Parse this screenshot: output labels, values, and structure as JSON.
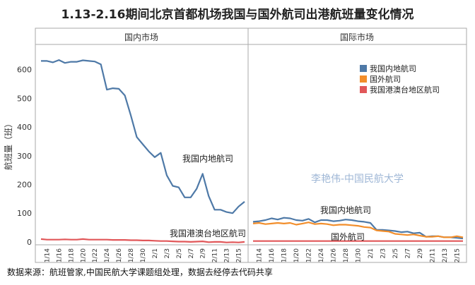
{
  "title": "1.13-2.16期间北京首都机场我国与国外航司出港航班量变化情况",
  "source": "数据来源：航班管家,中国民航大学课题组处理，数据去经停去代码共享",
  "watermark": "李艳伟-中国民航大学",
  "colors": {
    "domestic": "#4e79a7",
    "foreign": "#f28e2b",
    "hmt": "#e15759",
    "watermark": "#9fb7d6"
  },
  "chart_data": [
    {
      "type": "line",
      "panel_title": "国内市场",
      "ylabel": "航班量（班）",
      "ylim": [
        -10,
        680
      ],
      "yticks": [
        0,
        100,
        200,
        300,
        400,
        500,
        600
      ],
      "x_ticklabels": [
        "1/14",
        "1/16",
        "1/18",
        "1/20",
        "1/22",
        "1/24",
        "1/26",
        "1/28",
        "1/30",
        "2/1",
        "2/3",
        "2/5",
        "2/7",
        "2/9",
        "2/11",
        "2/13",
        "2/15"
      ],
      "x": [
        "1/13",
        "1/14",
        "1/15",
        "1/16",
        "1/17",
        "1/18",
        "1/19",
        "1/20",
        "1/21",
        "1/22",
        "1/23",
        "1/24",
        "1/25",
        "1/26",
        "1/27",
        "1/28",
        "1/29",
        "1/30",
        "1/31",
        "2/1",
        "2/2",
        "2/3",
        "2/4",
        "2/5",
        "2/6",
        "2/7",
        "2/8",
        "2/9",
        "2/10",
        "2/11",
        "2/12",
        "2/13",
        "2/14",
        "2/15",
        "2/16"
      ],
      "series": [
        {
          "name": "我国内地航司",
          "color": "#4e79a7",
          "values": [
            630,
            630,
            625,
            633,
            623,
            627,
            627,
            632,
            630,
            628,
            618,
            530,
            535,
            533,
            510,
            440,
            365,
            340,
            315,
            295,
            310,
            232,
            195,
            190,
            155,
            155,
            185,
            237,
            160,
            112,
            112,
            104,
            100,
            123,
            140
          ]
        },
        {
          "name": "我国港澳台地区航司",
          "color": "#e15759",
          "values": [
            10,
            8,
            8,
            8,
            9,
            8,
            8,
            10,
            8,
            8,
            8,
            8,
            7,
            7,
            7,
            6,
            6,
            5,
            5,
            4,
            3,
            3,
            2,
            1,
            1,
            0,
            1,
            2,
            -1,
            0,
            0,
            -2,
            -1,
            -2,
            0
          ]
        }
      ],
      "annotations": [
        "我国内地航司",
        "我国港澳台地区航司"
      ]
    },
    {
      "type": "line",
      "panel_title": "国际市场",
      "ylim": [
        -10,
        680
      ],
      "x_ticklabels": [
        "1/14",
        "1/16",
        "1/18",
        "1/20",
        "1/22",
        "1/24",
        "1/26",
        "1/28",
        "1/30",
        "2/1",
        "2/3",
        "2/5",
        "2/7",
        "2/9",
        "2/11",
        "2/13",
        "2/15"
      ],
      "x": [
        "1/13",
        "1/14",
        "1/15",
        "1/16",
        "1/17",
        "1/18",
        "1/19",
        "1/20",
        "1/21",
        "1/22",
        "1/23",
        "1/24",
        "1/25",
        "1/26",
        "1/27",
        "1/28",
        "1/29",
        "1/30",
        "1/31",
        "2/1",
        "2/2",
        "2/3",
        "2/4",
        "2/5",
        "2/6",
        "2/7",
        "2/8",
        "2/9",
        "2/10",
        "2/11",
        "2/12",
        "2/13",
        "2/14",
        "2/15",
        "2/16"
      ],
      "series": [
        {
          "name": "我国内地航司",
          "color": "#4e79a7",
          "values": [
            70,
            72,
            76,
            82,
            78,
            84,
            82,
            76,
            74,
            80,
            68,
            76,
            76,
            72,
            74,
            78,
            76,
            72,
            70,
            66,
            42,
            42,
            40,
            38,
            34,
            36,
            30,
            32,
            18,
            20,
            20,
            16,
            16,
            14,
            12
          ]
        },
        {
          "name": "国外航司",
          "color": "#f28e2b",
          "values": [
            64,
            66,
            62,
            64,
            66,
            64,
            66,
            60,
            64,
            68,
            62,
            64,
            62,
            58,
            60,
            60,
            58,
            56,
            52,
            50,
            40,
            38,
            36,
            28,
            26,
            24,
            26,
            22,
            18,
            18,
            20,
            16,
            16,
            20,
            16
          ]
        },
        {
          "name": "我国港澳台地区航司",
          "color": "#e15759",
          "values": [
            3,
            3,
            3,
            3,
            3,
            3,
            3,
            3,
            3,
            3,
            3,
            3,
            3,
            3,
            3,
            3,
            3,
            3,
            3,
            3,
            3,
            3,
            3,
            3,
            3,
            3,
            3,
            3,
            3,
            3,
            3,
            3,
            3,
            3,
            3
          ]
        }
      ],
      "annotations": [
        "我国内地航司",
        "国外航司"
      ],
      "legend": {
        "placement": "top-right",
        "entries": [
          "我国内地航司",
          "国外航司",
          "我国港澳台地区航司"
        ]
      }
    }
  ]
}
